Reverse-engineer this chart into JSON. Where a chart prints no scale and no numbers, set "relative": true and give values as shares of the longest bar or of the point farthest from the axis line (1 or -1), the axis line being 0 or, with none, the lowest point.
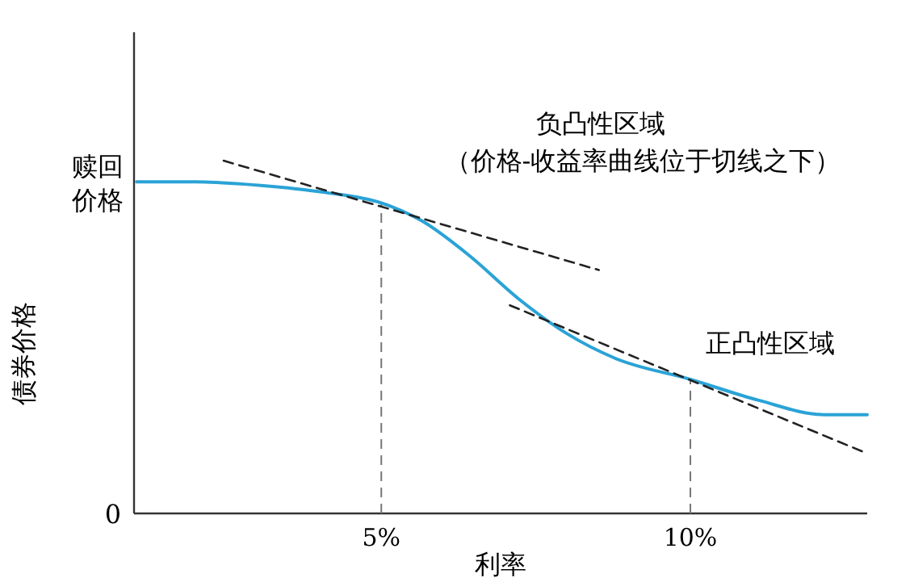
{
  "chart_data": {
    "type": "line",
    "xlabel": "利率",
    "ylabel": "债券价格",
    "relative": true,
    "xlim": [
      1,
      12.86
    ],
    "xticks": [
      {
        "value": 5,
        "label": "5%"
      },
      {
        "value": 10,
        "label": "10%"
      }
    ],
    "marker": "none",
    "series": [
      {
        "color": "#2aa3d6",
        "line_style": "solid",
        "x": [
          1.04,
          2.0,
          3.05,
          4.09,
          5,
          5.65,
          6.43,
          7.21,
          8.0,
          8.78,
          10,
          11.12,
          12.16,
          12.86
        ],
        "values": [
          0.94,
          0.94,
          0.93,
          0.91,
          0.88,
          0.83,
          0.73,
          0.61,
          0.51,
          0.44,
          0.38,
          0.32,
          0.28,
          0.28
        ]
      },
      {
        "color": "#222222",
        "line_style": "dashed",
        "x": [
          2.45,
          8.52
        ],
        "values": [
          1,
          0.69
        ]
      },
      {
        "color": "#222222",
        "line_style": "dashed",
        "x": [
          7.08,
          12.86
        ],
        "values": [
          0.59,
          0.17
        ]
      }
    ],
    "ref_lines": [
      {
        "axis": "x",
        "value": 5,
        "color": "#777777",
        "line_style": "dashed"
      },
      {
        "axis": "x",
        "value": 10,
        "color": "#777777",
        "line_style": "dashed"
      }
    ],
    "annotations": [
      "负凸性区域",
      "（价格-收益率曲线位于切线之下）",
      "正凸性区域",
      "0",
      {
        "text": "赎回价格",
        "x": 1.04,
        "y": 0.94
      }
    ]
  }
}
